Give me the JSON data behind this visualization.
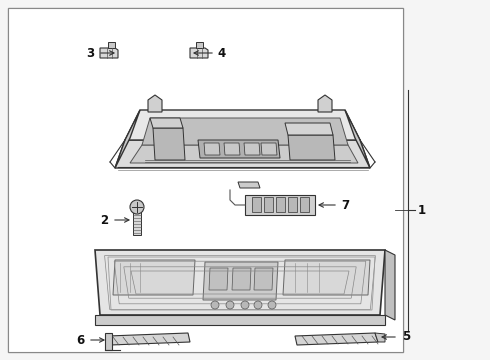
{
  "bg_color": "#f2f2f2",
  "white": "#ffffff",
  "border_color": "#999999",
  "line_color": "#555555",
  "dark_line": "#333333",
  "light_fill": "#e8e8e8",
  "mid_fill": "#d4d4d4",
  "dark_fill": "#b8b8b8",
  "figsize": [
    4.9,
    3.6
  ],
  "dpi": 100,
  "label_font": 8.5
}
